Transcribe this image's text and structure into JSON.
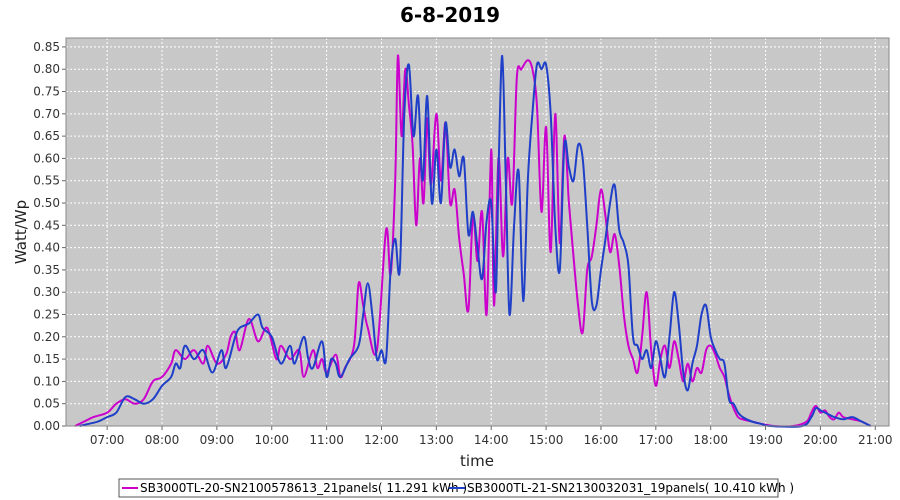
{
  "chart_data": {
    "type": "line",
    "title": "6-8-2019",
    "xlabel": "time",
    "ylabel": "Watt/Wp",
    "x_ticks": [
      "07:00",
      "08:00",
      "09:00",
      "10:00",
      "11:00",
      "12:00",
      "13:00",
      "14:00",
      "15:00",
      "16:00",
      "17:00",
      "18:00",
      "19:00",
      "20:00",
      "21:00"
    ],
    "y_ticks": [
      "0.00",
      "0.05",
      "0.10",
      "0.15",
      "0.20",
      "0.25",
      "0.30",
      "0.35",
      "0.40",
      "0.45",
      "0.50",
      "0.55",
      "0.60",
      "0.65",
      "0.70",
      "0.75",
      "0.80",
      "0.85"
    ],
    "xlim": [
      "06:15",
      "21:15"
    ],
    "ylim": [
      0,
      0.87
    ],
    "grid": true,
    "plot_background": "#c8c8c8",
    "legend_position": "bottom",
    "series": [
      {
        "name": "SB3000TL-20-SN2100578613_21panels( 11.291 kWh )",
        "color": "#cc00cc",
        "points": [
          [
            "06:25",
            0.0
          ],
          [
            "06:35",
            0.01
          ],
          [
            "06:45",
            0.02
          ],
          [
            "07:00",
            0.03
          ],
          [
            "07:10",
            0.05
          ],
          [
            "07:20",
            0.06
          ],
          [
            "07:30",
            0.05
          ],
          [
            "07:40",
            0.06
          ],
          [
            "07:50",
            0.1
          ],
          [
            "08:00",
            0.11
          ],
          [
            "08:10",
            0.14
          ],
          [
            "08:15",
            0.17
          ],
          [
            "08:25",
            0.15
          ],
          [
            "08:35",
            0.17
          ],
          [
            "08:45",
            0.14
          ],
          [
            "08:50",
            0.18
          ],
          [
            "09:00",
            0.14
          ],
          [
            "09:10",
            0.16
          ],
          [
            "09:15",
            0.2
          ],
          [
            "09:20",
            0.21
          ],
          [
            "09:25",
            0.17
          ],
          [
            "09:35",
            0.24
          ],
          [
            "09:45",
            0.19
          ],
          [
            "09:55",
            0.22
          ],
          [
            "10:05",
            0.15
          ],
          [
            "10:10",
            0.18
          ],
          [
            "10:20",
            0.15
          ],
          [
            "10:30",
            0.17
          ],
          [
            "10:35",
            0.11
          ],
          [
            "10:45",
            0.17
          ],
          [
            "10:50",
            0.13
          ],
          [
            "10:55",
            0.15
          ],
          [
            "11:00",
            0.12
          ],
          [
            "11:10",
            0.16
          ],
          [
            "11:15",
            0.11
          ],
          [
            "11:20",
            0.13
          ],
          [
            "11:30",
            0.18
          ],
          [
            "11:35",
            0.32
          ],
          [
            "11:40",
            0.27
          ],
          [
            "11:45",
            0.22
          ],
          [
            "11:55",
            0.17
          ],
          [
            "12:05",
            0.44
          ],
          [
            "12:10",
            0.34
          ],
          [
            "12:15",
            0.55
          ],
          [
            "12:18",
            0.83
          ],
          [
            "12:22",
            0.65
          ],
          [
            "12:26",
            0.8
          ],
          [
            "12:30",
            0.72
          ],
          [
            "12:34",
            0.63
          ],
          [
            "12:38",
            0.45
          ],
          [
            "12:42",
            0.6
          ],
          [
            "12:46",
            0.5
          ],
          [
            "12:50",
            0.69
          ],
          [
            "12:54",
            0.54
          ],
          [
            "13:00",
            0.7
          ],
          [
            "13:05",
            0.55
          ],
          [
            "13:10",
            0.68
          ],
          [
            "13:15",
            0.5
          ],
          [
            "13:20",
            0.53
          ],
          [
            "13:25",
            0.42
          ],
          [
            "13:30",
            0.34
          ],
          [
            "13:35",
            0.26
          ],
          [
            "13:40",
            0.47
          ],
          [
            "13:45",
            0.37
          ],
          [
            "13:50",
            0.48
          ],
          [
            "13:55",
            0.25
          ],
          [
            "14:00",
            0.62
          ],
          [
            "14:03",
            0.27
          ],
          [
            "14:08",
            0.6
          ],
          [
            "14:13",
            0.38
          ],
          [
            "14:18",
            0.6
          ],
          [
            "14:23",
            0.5
          ],
          [
            "14:28",
            0.78
          ],
          [
            "14:33",
            0.8
          ],
          [
            "14:40",
            0.82
          ],
          [
            "14:45",
            0.8
          ],
          [
            "14:50",
            0.72
          ],
          [
            "14:55",
            0.48
          ],
          [
            "15:00",
            0.67
          ],
          [
            "15:05",
            0.39
          ],
          [
            "15:10",
            0.7
          ],
          [
            "15:15",
            0.41
          ],
          [
            "15:20",
            0.65
          ],
          [
            "15:25",
            0.5
          ],
          [
            "15:30",
            0.38
          ],
          [
            "15:35",
            0.27
          ],
          [
            "15:40",
            0.21
          ],
          [
            "15:45",
            0.35
          ],
          [
            "15:50",
            0.38
          ],
          [
            "15:55",
            0.45
          ],
          [
            "16:00",
            0.53
          ],
          [
            "16:05",
            0.47
          ],
          [
            "16:10",
            0.39
          ],
          [
            "16:15",
            0.43
          ],
          [
            "16:20",
            0.36
          ],
          [
            "16:25",
            0.25
          ],
          [
            "16:30",
            0.18
          ],
          [
            "16:35",
            0.15
          ],
          [
            "16:40",
            0.12
          ],
          [
            "16:45",
            0.2
          ],
          [
            "16:50",
            0.3
          ],
          [
            "16:55",
            0.17
          ],
          [
            "17:00",
            0.09
          ],
          [
            "17:05",
            0.15
          ],
          [
            "17:10",
            0.18
          ],
          [
            "17:15",
            0.13
          ],
          [
            "17:20",
            0.19
          ],
          [
            "17:25",
            0.15
          ],
          [
            "17:30",
            0.1
          ],
          [
            "17:35",
            0.14
          ],
          [
            "17:40",
            0.1
          ],
          [
            "17:45",
            0.13
          ],
          [
            "17:50",
            0.12
          ],
          [
            "17:55",
            0.17
          ],
          [
            "18:00",
            0.18
          ],
          [
            "18:05",
            0.16
          ],
          [
            "18:10",
            0.13
          ],
          [
            "18:15",
            0.11
          ],
          [
            "18:20",
            0.07
          ],
          [
            "18:25",
            0.04
          ],
          [
            "18:30",
            0.02
          ],
          [
            "18:35",
            0.015
          ],
          [
            "18:45",
            0.01
          ],
          [
            "18:55",
            0.005
          ],
          [
            "19:10",
            0.0
          ],
          [
            "19:30",
            0.0
          ],
          [
            "19:45",
            0.01
          ],
          [
            "19:50",
            0.03
          ],
          [
            "19:55",
            0.045
          ],
          [
            "20:00",
            0.03
          ],
          [
            "20:05",
            0.035
          ],
          [
            "20:10",
            0.02
          ],
          [
            "20:15",
            0.015
          ],
          [
            "20:20",
            0.03
          ],
          [
            "20:25",
            0.02
          ],
          [
            "20:35",
            0.015
          ],
          [
            "20:45",
            0.01
          ],
          [
            "20:55",
            0.0
          ]
        ]
      },
      {
        "name": "SB3000TL-21-SN2130032031_19panels( 10.410 kWh )",
        "color": "#1f3fc8",
        "points": [
          [
            "06:30",
            0.0
          ],
          [
            "06:40",
            0.005
          ],
          [
            "06:50",
            0.01
          ],
          [
            "07:00",
            0.02
          ],
          [
            "07:10",
            0.03
          ],
          [
            "07:20",
            0.065
          ],
          [
            "07:30",
            0.06
          ],
          [
            "07:40",
            0.05
          ],
          [
            "07:50",
            0.06
          ],
          [
            "08:00",
            0.09
          ],
          [
            "08:10",
            0.11
          ],
          [
            "08:15",
            0.14
          ],
          [
            "08:20",
            0.13
          ],
          [
            "08:25",
            0.18
          ],
          [
            "08:35",
            0.15
          ],
          [
            "08:45",
            0.17
          ],
          [
            "08:55",
            0.12
          ],
          [
            "09:05",
            0.17
          ],
          [
            "09:10",
            0.13
          ],
          [
            "09:20",
            0.2
          ],
          [
            "09:25",
            0.22
          ],
          [
            "09:35",
            0.23
          ],
          [
            "09:45",
            0.25
          ],
          [
            "09:50",
            0.22
          ],
          [
            "10:00",
            0.2
          ],
          [
            "10:10",
            0.14
          ],
          [
            "10:20",
            0.18
          ],
          [
            "10:25",
            0.14
          ],
          [
            "10:35",
            0.2
          ],
          [
            "10:40",
            0.15
          ],
          [
            "10:45",
            0.13
          ],
          [
            "10:55",
            0.19
          ],
          [
            "11:00",
            0.11
          ],
          [
            "11:05",
            0.15
          ],
          [
            "11:10",
            0.14
          ],
          [
            "11:15",
            0.11
          ],
          [
            "11:25",
            0.15
          ],
          [
            "11:35",
            0.18
          ],
          [
            "11:40",
            0.25
          ],
          [
            "11:45",
            0.32
          ],
          [
            "11:50",
            0.25
          ],
          [
            "11:55",
            0.15
          ],
          [
            "12:00",
            0.17
          ],
          [
            "12:05",
            0.15
          ],
          [
            "12:10",
            0.35
          ],
          [
            "12:15",
            0.42
          ],
          [
            "12:20",
            0.35
          ],
          [
            "12:25",
            0.7
          ],
          [
            "12:30",
            0.81
          ],
          [
            "12:35",
            0.65
          ],
          [
            "12:40",
            0.74
          ],
          [
            "12:45",
            0.55
          ],
          [
            "12:50",
            0.74
          ],
          [
            "12:55",
            0.5
          ],
          [
            "13:00",
            0.62
          ],
          [
            "13:05",
            0.5
          ],
          [
            "13:10",
            0.68
          ],
          [
            "13:15",
            0.58
          ],
          [
            "13:20",
            0.62
          ],
          [
            "13:25",
            0.56
          ],
          [
            "13:30",
            0.6
          ],
          [
            "13:35",
            0.43
          ],
          [
            "13:40",
            0.48
          ],
          [
            "13:45",
            0.4
          ],
          [
            "13:50",
            0.33
          ],
          [
            "13:55",
            0.46
          ],
          [
            "14:00",
            0.5
          ],
          [
            "14:05",
            0.3
          ],
          [
            "14:08",
            0.57
          ],
          [
            "14:12",
            0.83
          ],
          [
            "14:16",
            0.55
          ],
          [
            "14:20",
            0.25
          ],
          [
            "14:25",
            0.45
          ],
          [
            "14:30",
            0.57
          ],
          [
            "14:35",
            0.28
          ],
          [
            "14:40",
            0.55
          ],
          [
            "14:45",
            0.7
          ],
          [
            "14:50",
            0.81
          ],
          [
            "14:55",
            0.8
          ],
          [
            "15:00",
            0.81
          ],
          [
            "15:05",
            0.7
          ],
          [
            "15:10",
            0.45
          ],
          [
            "15:15",
            0.35
          ],
          [
            "15:20",
            0.63
          ],
          [
            "15:25",
            0.58
          ],
          [
            "15:30",
            0.55
          ],
          [
            "15:35",
            0.63
          ],
          [
            "15:40",
            0.6
          ],
          [
            "15:45",
            0.45
          ],
          [
            "15:50",
            0.28
          ],
          [
            "15:55",
            0.27
          ],
          [
            "16:00",
            0.35
          ],
          [
            "16:05",
            0.42
          ],
          [
            "16:10",
            0.5
          ],
          [
            "16:15",
            0.54
          ],
          [
            "16:20",
            0.44
          ],
          [
            "16:25",
            0.41
          ],
          [
            "16:30",
            0.36
          ],
          [
            "16:35",
            0.2
          ],
          [
            "16:40",
            0.18
          ],
          [
            "16:45",
            0.15
          ],
          [
            "16:50",
            0.17
          ],
          [
            "16:55",
            0.13
          ],
          [
            "17:00",
            0.19
          ],
          [
            "17:05",
            0.15
          ],
          [
            "17:10",
            0.11
          ],
          [
            "17:15",
            0.2
          ],
          [
            "17:20",
            0.3
          ],
          [
            "17:25",
            0.23
          ],
          [
            "17:30",
            0.12
          ],
          [
            "17:35",
            0.08
          ],
          [
            "17:40",
            0.14
          ],
          [
            "17:45",
            0.18
          ],
          [
            "17:50",
            0.25
          ],
          [
            "17:55",
            0.27
          ],
          [
            "18:00",
            0.2
          ],
          [
            "18:05",
            0.17
          ],
          [
            "18:10",
            0.15
          ],
          [
            "18:15",
            0.14
          ],
          [
            "18:20",
            0.06
          ],
          [
            "18:25",
            0.05
          ],
          [
            "18:30",
            0.03
          ],
          [
            "18:35",
            0.02
          ],
          [
            "18:45",
            0.01
          ],
          [
            "18:55",
            0.005
          ],
          [
            "19:05",
            0.0
          ],
          [
            "19:40",
            0.0
          ],
          [
            "19:50",
            0.02
          ],
          [
            "19:55",
            0.04
          ],
          [
            "20:00",
            0.035
          ],
          [
            "20:05",
            0.03
          ],
          [
            "20:10",
            0.025
          ],
          [
            "20:15",
            0.02
          ],
          [
            "20:25",
            0.015
          ],
          [
            "20:35",
            0.02
          ],
          [
            "20:45",
            0.01
          ],
          [
            "20:55",
            0.0
          ]
        ]
      }
    ]
  }
}
